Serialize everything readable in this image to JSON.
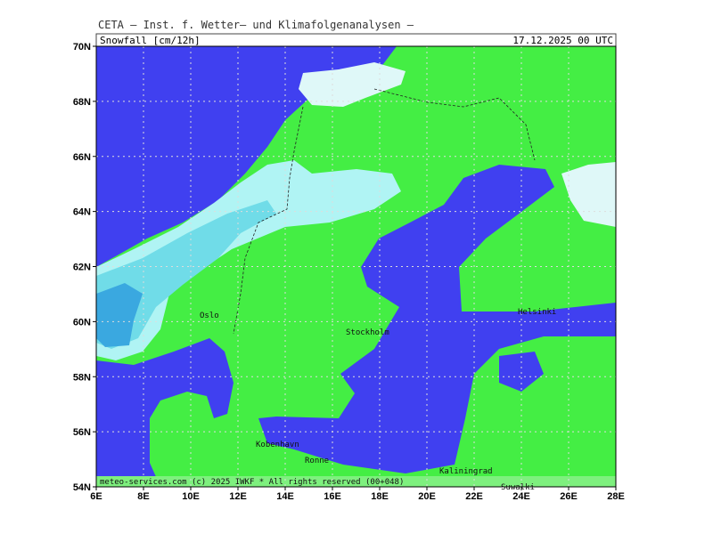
{
  "header": {
    "institute": "CETA — Inst. f. Wetter— und Klimafolgenanalysen —",
    "title": "Snowfall [cm/12h]",
    "valid_time": "17.12.2025 00 UTC"
  },
  "axes": {
    "lat_labels": [
      "70N",
      "68N",
      "66N",
      "64N",
      "62N",
      "60N",
      "58N",
      "56N",
      "54N"
    ],
    "lon_labels": [
      "6E",
      "8E",
      "10E",
      "12E",
      "14E",
      "16E",
      "18E",
      "20E",
      "22E",
      "24E",
      "26E",
      "28E"
    ]
  },
  "places": [
    "Oslo",
    "Stockholm",
    "Helsinki",
    "Kobenhavn",
    "Ronne",
    "Kaliningrad",
    "Suwalki"
  ],
  "footer": "meteo-services.com (c) 2025 IWKF * All rights reserved (00+048)"
}
